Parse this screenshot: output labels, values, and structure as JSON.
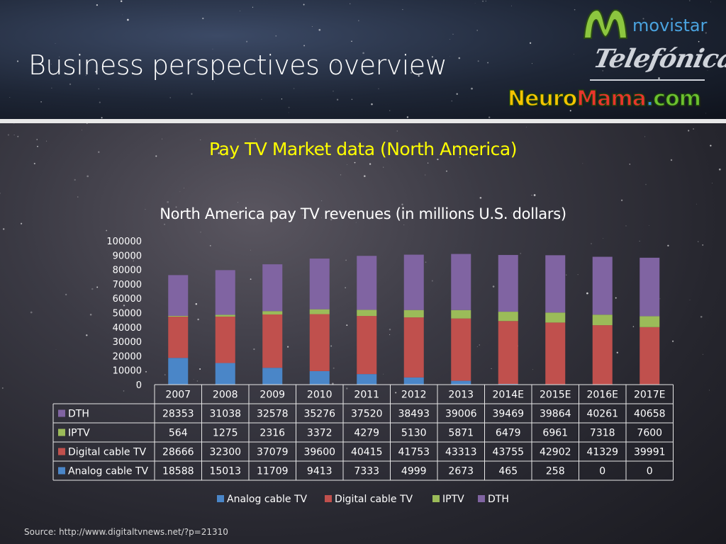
{
  "slide": {
    "title": "Business perspectives overview",
    "subtitle": "Pay TV Market data (North America)",
    "source": "Source: http://www.digitaltvnews.net/?p=21310"
  },
  "logos": {
    "movistar": "movistar",
    "telefonica": "Telefónica",
    "neuromama_letters": [
      "N",
      "e",
      "u",
      "r",
      "o",
      "M",
      "a",
      "m",
      "a",
      ".",
      "c",
      "o",
      "m"
    ],
    "neuromama_colors": [
      "#f5c400",
      "#f5c400",
      "#f5c400",
      "#f5c400",
      "#f5c400",
      "#e8352b",
      "#e8352b",
      "#e8352b",
      "#e8352b",
      "#3b8ee0",
      "#6dc12f",
      "#6dc12f",
      "#6dc12f"
    ],
    "movistar_color": "#8cc63f",
    "movistar_text_color": "#4aa3df"
  },
  "chart_data": {
    "type": "bar",
    "stacked": true,
    "title": "North America pay TV revenues (in millions U.S. dollars)",
    "categories": [
      "2007",
      "2008",
      "2009",
      "2010",
      "2011",
      "2012",
      "2013",
      "2014E",
      "2015E",
      "2016E",
      "2017E"
    ],
    "ylim": [
      0,
      100000
    ],
    "yticks": [
      "100000",
      "90000",
      "80000",
      "70000",
      "60000",
      "50000",
      "40000",
      "30000",
      "20000",
      "10000",
      "0"
    ],
    "series": [
      {
        "name": "Analog cable TV",
        "color": "#4a86c8",
        "values": [
          18588,
          15013,
          11709,
          9413,
          7333,
          4999,
          2673,
          465,
          258,
          0,
          0
        ]
      },
      {
        "name": "Digital cable TV",
        "color": "#c0504d",
        "values": [
          28666,
          32300,
          37079,
          39600,
          40415,
          41753,
          43313,
          43755,
          42902,
          41329,
          39991
        ]
      },
      {
        "name": "IPTV",
        "color": "#9bbb59",
        "values": [
          564,
          1275,
          2316,
          3372,
          4279,
          5130,
          5871,
          6479,
          6961,
          7318,
          7600
        ]
      },
      {
        "name": "DTH",
        "color": "#8064a2",
        "values": [
          28353,
          31038,
          32578,
          35276,
          37520,
          38493,
          39006,
          39469,
          39864,
          40261,
          40658
        ]
      }
    ],
    "table_row_order": [
      "DTH",
      "IPTV",
      "Digital cable TV",
      "Analog cable TV"
    ],
    "legend_order": [
      "Analog cable TV",
      "Digital cable TV",
      "IPTV",
      "DTH"
    ],
    "legend_position": "bottom",
    "grid": false
  }
}
